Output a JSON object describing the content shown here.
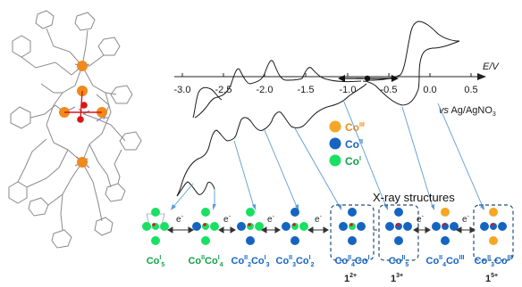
{
  "axis": {
    "label_e": "E",
    "label_slash": "/",
    "label_v": "V",
    "vs_prefix": "vs",
    "reference": "Ag/AgNO",
    "reference_sub": "3",
    "ticks": [
      "-3.0",
      "-2.5",
      "-2.0",
      "-1.5",
      "-1.0",
      "-0.5",
      "0.0",
      "0.5"
    ]
  },
  "legend": {
    "items": [
      {
        "base": "Co",
        "sup": "III",
        "color": "#f5a623"
      },
      {
        "base": "Co",
        "sup": "II",
        "color": "#1565c0"
      },
      {
        "base": "Co",
        "sup": "I",
        "color": "#19e062"
      }
    ]
  },
  "electron_label": "e",
  "electron_sup": "-",
  "xray_title": "X-ray structures",
  "states": [
    {
      "parts": [
        {
          "t": "Co"
        },
        {
          "t": "I",
          "sup": true
        },
        {
          "t": "5",
          "sub": true
        }
      ],
      "color": "#11a84a"
    },
    {
      "parts": [
        {
          "t": "Co"
        },
        {
          "t": "II",
          "sup": true
        },
        {
          "t": "Co"
        },
        {
          "t": "I",
          "sup": true
        },
        {
          "t": "4",
          "sub": true
        }
      ],
      "color": "#13a04a"
    },
    {
      "parts": [
        {
          "t": "Co"
        },
        {
          "t": "II",
          "sup": true
        },
        {
          "t": "2",
          "sub": true
        },
        {
          "t": "Co"
        },
        {
          "t": "I",
          "sup": true
        },
        {
          "t": "3",
          "sub": true
        }
      ],
      "color": "#1565c0"
    },
    {
      "parts": [
        {
          "t": "Co"
        },
        {
          "t": "II",
          "sup": true
        },
        {
          "t": "3",
          "sub": true
        },
        {
          "t": "Co"
        },
        {
          "t": "I",
          "sup": true
        },
        {
          "t": "2",
          "sub": true
        }
      ],
      "color": "#1565c0"
    },
    {
      "parts": [
        {
          "t": "Co"
        },
        {
          "t": "II",
          "sup": true
        },
        {
          "t": "4",
          "sub": true
        },
        {
          "t": "Co"
        },
        {
          "t": "I",
          "sup": true
        }
      ],
      "color": "#1565c0"
    },
    {
      "parts": [
        {
          "t": "Co"
        },
        {
          "t": "II",
          "sup": true
        },
        {
          "t": "5",
          "sub": true
        }
      ],
      "color": "#1565c0"
    },
    {
      "parts": [
        {
          "t": "Co"
        },
        {
          "t": "II",
          "sup": true
        },
        {
          "t": "4",
          "sub": true
        },
        {
          "t": "Co"
        },
        {
          "t": "III",
          "sup": true
        }
      ],
      "color": "#1565c0"
    },
    {
      "parts": [
        {
          "t": "Co"
        },
        {
          "t": "II",
          "sup": true
        },
        {
          "t": "3",
          "sub": true
        },
        {
          "t": "Co"
        },
        {
          "t": "III",
          "sup": true
        }
      ],
      "color": "#1565c0"
    }
  ],
  "charges": [
    {
      "base": "1",
      "sup": "2+"
    },
    {
      "base": "1",
      "sup": "3+"
    },
    {
      "base": "1",
      "sup": "5+"
    }
  ]
}
